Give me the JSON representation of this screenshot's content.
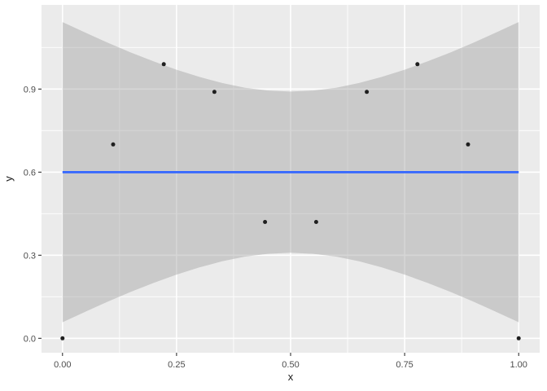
{
  "figure": {
    "background_color": "#FFFFFF",
    "panel_background_color": "#EBEBEB",
    "grid_major_color": "#FFFFFF",
    "grid_minor_color": "#FFFFFF",
    "tick_mark_color": "#333333",
    "tick_label_color": "#4D4D4D",
    "axis_title_color": "#1A1A1A"
  },
  "chart_data": {
    "type": "scatter",
    "title": "",
    "xlabel": "x",
    "ylabel": "y",
    "xlim": [
      -0.046,
      1.046
    ],
    "ylim": [
      -0.052,
      1.204
    ],
    "grid": "major+minor",
    "legend_position": "none",
    "x_ticks": {
      "values": [
        0,
        0.25,
        0.5,
        0.75,
        1.0
      ],
      "labels": [
        "0.00",
        "0.25",
        "0.50",
        "0.75",
        "1.00"
      ]
    },
    "y_ticks": {
      "values": [
        0,
        0.3,
        0.6,
        0.9
      ],
      "labels": [
        "0.0",
        "0.3",
        "0.6",
        "0.9"
      ]
    },
    "x_minor": [
      0.125,
      0.375,
      0.625,
      0.875
    ],
    "y_minor": [
      0.15,
      0.45,
      0.75,
      1.05
    ],
    "points": [
      {
        "x": 0.0,
        "y": 0.0
      },
      {
        "x": 0.111,
        "y": 0.7
      },
      {
        "x": 0.222,
        "y": 0.99
      },
      {
        "x": 0.333,
        "y": 0.89
      },
      {
        "x": 0.444,
        "y": 0.42
      },
      {
        "x": 0.556,
        "y": 0.42
      },
      {
        "x": 0.667,
        "y": 0.89
      },
      {
        "x": 0.778,
        "y": 0.99
      },
      {
        "x": 0.889,
        "y": 0.7
      },
      {
        "x": 1.0,
        "y": 0.0
      }
    ],
    "point_color": "#1F1F1F",
    "regression_line": {
      "method": "lm",
      "intercept": 0.6,
      "slope": 0,
      "color": "#3366FF"
    },
    "confidence_band": {
      "level": 0.95,
      "fill": "#999999",
      "opacity": 0.4,
      "x": [
        0.0,
        0.05,
        0.1,
        0.15,
        0.2,
        0.25,
        0.3,
        0.35,
        0.4,
        0.45,
        0.5,
        0.55,
        0.6,
        0.65,
        0.7,
        0.75,
        0.8,
        0.85,
        0.9,
        0.95,
        1.0
      ],
      "lower": [
        0.058,
        0.096,
        0.133,
        0.168,
        0.2,
        0.23,
        0.256,
        0.278,
        0.295,
        0.305,
        0.309,
        0.305,
        0.295,
        0.278,
        0.256,
        0.23,
        0.2,
        0.168,
        0.133,
        0.096,
        0.058
      ],
      "upper": [
        1.142,
        1.104,
        1.067,
        1.032,
        1.0,
        0.97,
        0.944,
        0.922,
        0.905,
        0.895,
        0.891,
        0.895,
        0.905,
        0.922,
        0.944,
        0.97,
        1.0,
        1.032,
        1.067,
        1.104,
        1.142
      ]
    }
  }
}
